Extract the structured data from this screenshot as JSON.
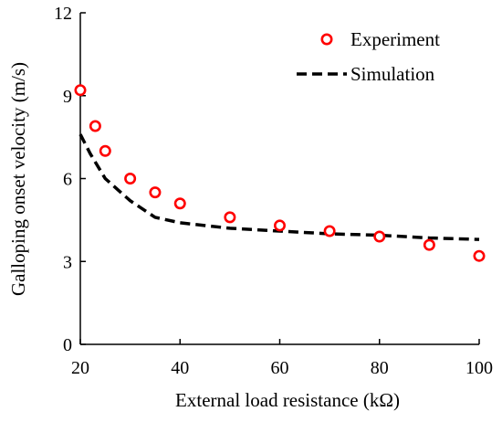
{
  "chart_data": {
    "type": "scatter",
    "title": "",
    "xlabel": "External load resistance (kΩ)",
    "ylabel": "Galloping onset velocity (m/s)",
    "xlim": [
      20,
      100
    ],
    "ylim": [
      0,
      12
    ],
    "xticks": [
      20,
      40,
      60,
      80,
      100
    ],
    "yticks": [
      0,
      3,
      6,
      9,
      12
    ],
    "grid": false,
    "legend_position": "top-right",
    "series": [
      {
        "name": "Experiment",
        "style": "markers",
        "marker": "open-circle",
        "color": "#ff0000",
        "x": [
          20,
          23,
          25,
          30,
          35,
          40,
          50,
          60,
          70,
          80,
          90,
          100
        ],
        "y": [
          9.2,
          7.9,
          7.0,
          6.0,
          5.5,
          5.1,
          4.6,
          4.3,
          4.1,
          3.9,
          3.6,
          3.2
        ]
      },
      {
        "name": "Simulation",
        "style": "dashed-line",
        "color": "#000000",
        "x": [
          20,
          22,
          25,
          30,
          35,
          40,
          50,
          60,
          70,
          80,
          90,
          100
        ],
        "y": [
          7.6,
          6.9,
          6.0,
          5.2,
          4.6,
          4.4,
          4.2,
          4.1,
          4.0,
          3.95,
          3.85,
          3.8
        ]
      }
    ]
  }
}
